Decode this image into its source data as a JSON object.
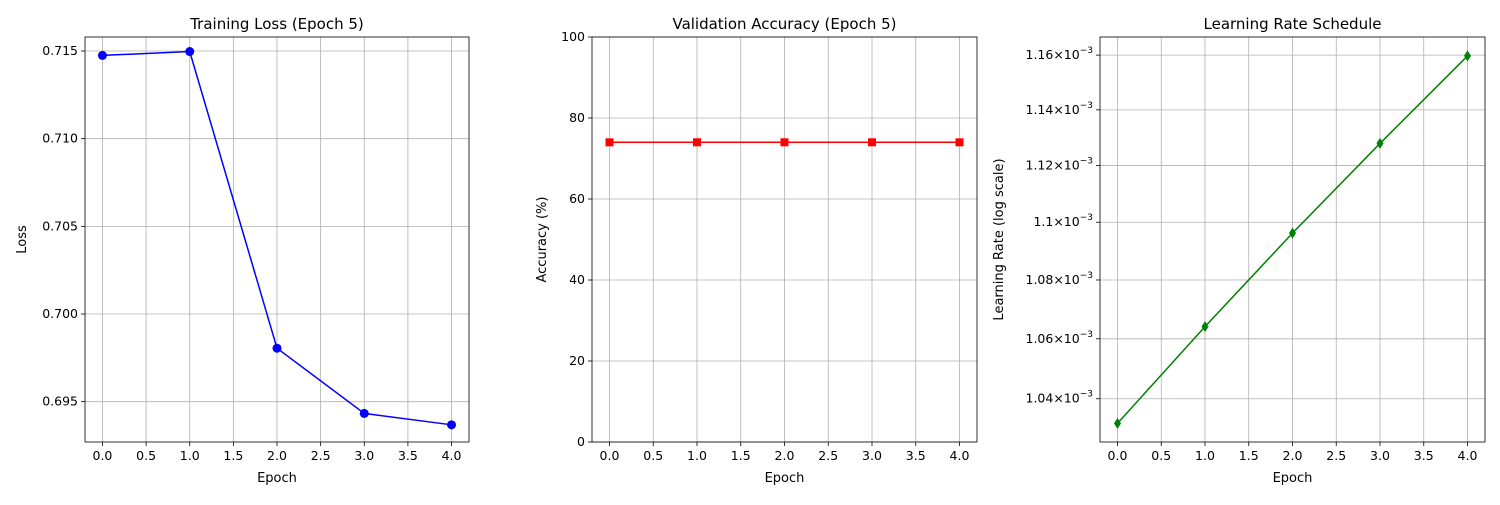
{
  "chart_data": [
    {
      "type": "line",
      "title": "Training Loss (Epoch 5)",
      "xlabel": "Epoch",
      "ylabel": "Loss",
      "x": [
        0,
        1,
        2,
        3,
        4
      ],
      "series": [
        {
          "values": [
            0.71475,
            0.71497,
            0.69805,
            0.69433,
            0.69368
          ],
          "color": "#0000ff",
          "marker": "circle"
        }
      ],
      "xlim": [
        -0.2,
        4.2
      ],
      "ylim": [
        0.6927,
        0.7158
      ],
      "xticks": [
        "0.0",
        "0.5",
        "1.0",
        "1.5",
        "2.0",
        "2.5",
        "3.0",
        "3.5",
        "4.0"
      ],
      "yticks": [
        "0.695",
        "0.700",
        "0.705",
        "0.710",
        "0.715"
      ],
      "grid": true
    },
    {
      "type": "line",
      "title": "Validation Accuracy (Epoch 5)",
      "xlabel": "Epoch",
      "ylabel": "Accuracy (%)",
      "x": [
        0,
        1,
        2,
        3,
        4
      ],
      "series": [
        {
          "values": [
            74,
            74,
            74,
            74,
            74
          ],
          "color": "#ff0000",
          "marker": "square"
        }
      ],
      "xlim": [
        -0.2,
        4.2
      ],
      "ylim": [
        0,
        100
      ],
      "xticks": [
        "0.0",
        "0.5",
        "1.0",
        "1.5",
        "2.0",
        "2.5",
        "3.0",
        "3.5",
        "4.0"
      ],
      "yticks": [
        "0",
        "20",
        "40",
        "60",
        "80",
        "100"
      ],
      "grid": true
    },
    {
      "type": "line",
      "title": "Learning Rate Schedule",
      "xlabel": "Epoch",
      "ylabel": "Learning Rate (log scale)",
      "yscale": "log",
      "x": [
        0,
        1,
        2,
        3,
        4
      ],
      "series": [
        {
          "values": [
            0.0010319,
            0.0010641,
            0.0010962,
            0.0011279,
            0.0011597
          ],
          "color": "#008000",
          "marker": "diamond"
        }
      ],
      "xlim": [
        -0.2,
        4.2
      ],
      "ylim": [
        0.0010258,
        0.0011667
      ],
      "xticks": [
        "0.0",
        "0.5",
        "1.0",
        "1.5",
        "2.0",
        "2.5",
        "3.0",
        "3.5",
        "4.0"
      ],
      "yticks": [
        {
          "value": 0.00104,
          "mantissa": "1.04",
          "base": "10",
          "exponent": "−3"
        },
        {
          "value": 0.00106,
          "mantissa": "1.06",
          "base": "10",
          "exponent": "−3"
        },
        {
          "value": 0.00108,
          "mantissa": "1.08",
          "base": "10",
          "exponent": "−3"
        },
        {
          "value": 0.0011,
          "mantissa": "1.1",
          "base": "10",
          "exponent": "−3"
        },
        {
          "value": 0.00112,
          "mantissa": "1.12",
          "base": "10",
          "exponent": "−3"
        },
        {
          "value": 0.00114,
          "mantissa": "1.14",
          "base": "10",
          "exponent": "−3"
        },
        {
          "value": 0.00116,
          "mantissa": "1.16",
          "base": "10",
          "exponent": "−3"
        }
      ],
      "grid": true
    }
  ]
}
